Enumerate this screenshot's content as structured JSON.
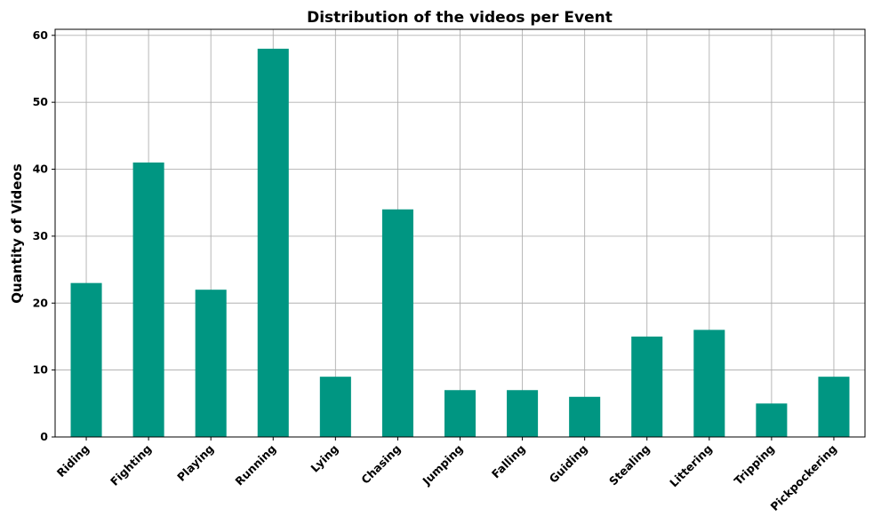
{
  "chart_data": {
    "type": "bar",
    "title": "Distribution of the videos per Event",
    "xlabel": "",
    "ylabel": "Quantity of Videos",
    "categories": [
      "Riding",
      "Fighting",
      "Playing",
      "Running",
      "Lying",
      "Chasing",
      "Jumping",
      "Falling",
      "Guiding",
      "Stealing",
      "Littering",
      "Tripping",
      "Pickpockering"
    ],
    "values": [
      23,
      41,
      22,
      58,
      9,
      34,
      7,
      7,
      6,
      15,
      16,
      5,
      9
    ],
    "ylim": [
      0,
      60.9
    ],
    "yticks": [
      0,
      10,
      20,
      30,
      40,
      50,
      60
    ],
    "grid": true,
    "bar_color": "#009682",
    "x_tick_rotation": 45
  }
}
